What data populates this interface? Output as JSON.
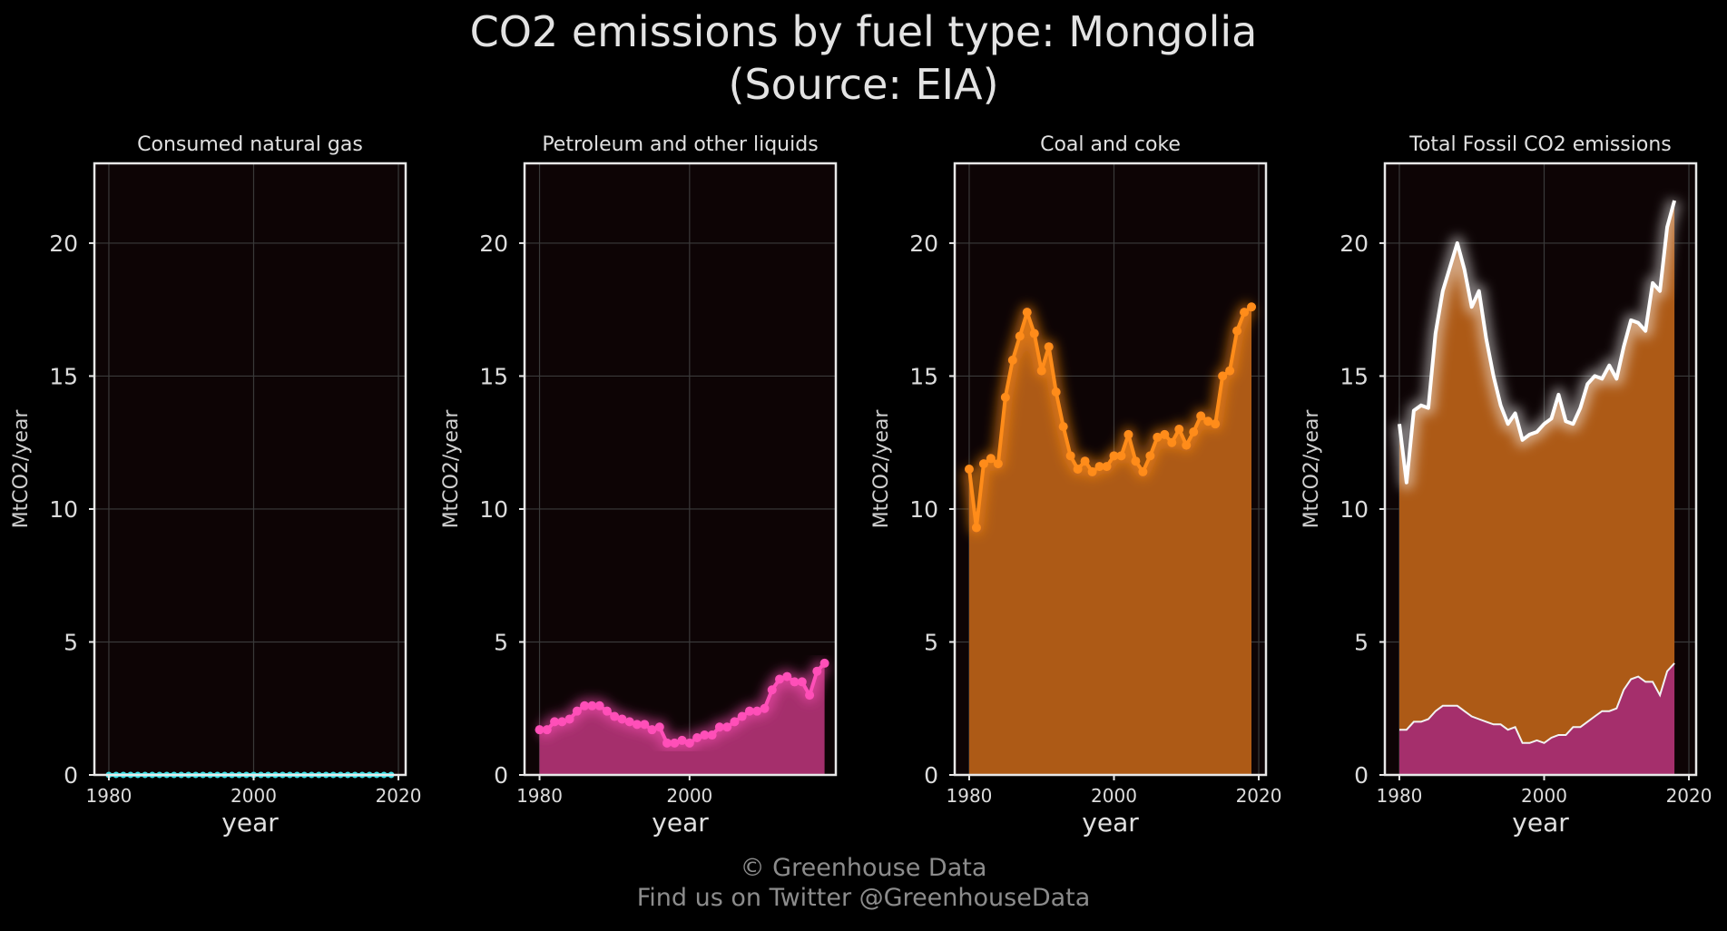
{
  "title_line1": "CO2 emissions by fuel type: Mongolia",
  "title_line2": "(Source: EIA)",
  "footer_line1": "© Greenhouse Data",
  "footer_line2": "Find us on Twitter @GreenhouseData",
  "colors": {
    "background": "#000000",
    "plot_bg": "#0d0405",
    "grid": "#3a3a3a",
    "frame": "#e8e8e8",
    "gas": "#39dfe6",
    "petroleum": "#ff4fb8",
    "petroleum_fill": "#a52f6c",
    "coal": "#ff8c1a",
    "coal_fill": "#ad5a16",
    "total": "#ffffff"
  },
  "chart_data": [
    {
      "type": "line",
      "title": "Consumed natural gas",
      "xlabel": "year",
      "ylabel": "MtCO2/year",
      "ylim": [
        0,
        23
      ],
      "xlim": [
        1978,
        2021
      ],
      "xticks": [
        "1980",
        "2000",
        "2020"
      ],
      "yticks": [
        "0",
        "5",
        "10",
        "15",
        "20"
      ],
      "grid": true,
      "series": [
        {
          "color": "#39dfe6",
          "x": [
            1980,
            1981,
            1982,
            1983,
            1984,
            1985,
            1986,
            1987,
            1988,
            1989,
            1990,
            1991,
            1992,
            1993,
            1994,
            1995,
            1996,
            1997,
            1998,
            1999,
            2000,
            2001,
            2002,
            2003,
            2004,
            2005,
            2006,
            2007,
            2008,
            2009,
            2010,
            2011,
            2012,
            2013,
            2014,
            2015,
            2016,
            2017,
            2018,
            2019
          ],
          "y": [
            0,
            0,
            0,
            0,
            0,
            0,
            0,
            0,
            0,
            0,
            0,
            0,
            0,
            0,
            0,
            0,
            0,
            0,
            0,
            0,
            0,
            0,
            0,
            0,
            0,
            0,
            0,
            0,
            0,
            0,
            0,
            0,
            0,
            0,
            0,
            0,
            0,
            0,
            0,
            0
          ]
        }
      ]
    },
    {
      "type": "area",
      "title": "Petroleum and other liquids",
      "xlabel": "year",
      "ylabel": "MtCO2/year",
      "ylim": [
        0,
        23
      ],
      "xlim": [
        1978,
        2019.5
      ],
      "xticks": [
        "1980",
        "2000"
      ],
      "yticks": [
        "0",
        "5",
        "10",
        "15",
        "20"
      ],
      "grid": true,
      "series": [
        {
          "color": "#ff4fb8",
          "x": [
            1980,
            1981,
            1982,
            1983,
            1984,
            1985,
            1986,
            1987,
            1988,
            1989,
            1990,
            1991,
            1992,
            1993,
            1994,
            1995,
            1996,
            1997,
            1998,
            1999,
            2000,
            2001,
            2002,
            2003,
            2004,
            2005,
            2006,
            2007,
            2008,
            2009,
            2010,
            2011,
            2012,
            2013,
            2014,
            2015,
            2016,
            2017,
            2018
          ],
          "y": [
            1.7,
            1.7,
            2.0,
            2.0,
            2.1,
            2.4,
            2.6,
            2.6,
            2.6,
            2.4,
            2.2,
            2.1,
            2.0,
            1.9,
            1.9,
            1.7,
            1.8,
            1.2,
            1.2,
            1.3,
            1.2,
            1.4,
            1.5,
            1.5,
            1.8,
            1.8,
            2.0,
            2.2,
            2.4,
            2.4,
            2.5,
            3.2,
            3.6,
            3.7,
            3.5,
            3.5,
            3.0,
            3.9,
            4.2
          ]
        }
      ]
    },
    {
      "type": "area",
      "title": "Coal and coke",
      "xlabel": "year",
      "ylabel": "MtCO2/year",
      "ylim": [
        0,
        23
      ],
      "xlim": [
        1978,
        2021
      ],
      "xticks": [
        "1980",
        "2000",
        "2020"
      ],
      "yticks": [
        "0",
        "5",
        "10",
        "15",
        "20"
      ],
      "grid": true,
      "series": [
        {
          "color": "#ff8c1a",
          "x": [
            1980,
            1981,
            1982,
            1983,
            1984,
            1985,
            1986,
            1987,
            1988,
            1989,
            1990,
            1991,
            1992,
            1993,
            1994,
            1995,
            1996,
            1997,
            1998,
            1999,
            2000,
            2001,
            2002,
            2003,
            2004,
            2005,
            2006,
            2007,
            2008,
            2009,
            2010,
            2011,
            2012,
            2013,
            2014,
            2015,
            2016,
            2017,
            2018,
            2019
          ],
          "y": [
            11.5,
            9.3,
            11.7,
            11.9,
            11.7,
            14.2,
            15.6,
            16.5,
            17.4,
            16.6,
            15.2,
            16.1,
            14.4,
            13.1,
            12.0,
            11.5,
            11.8,
            11.4,
            11.6,
            11.6,
            12.0,
            12.0,
            12.8,
            11.8,
            11.4,
            12.0,
            12.7,
            12.8,
            12.5,
            13.0,
            12.4,
            12.9,
            13.5,
            13.3,
            13.2,
            15.0,
            15.2,
            16.7,
            17.4,
            17.6
          ]
        }
      ]
    },
    {
      "type": "area",
      "title": "Total Fossil CO2 emissions",
      "xlabel": "year",
      "ylabel": "MtCO2/year",
      "ylim": [
        0,
        23
      ],
      "xlim": [
        1978,
        2021
      ],
      "xticks": [
        "1980",
        "2000",
        "2020"
      ],
      "yticks": [
        "0",
        "5",
        "10",
        "15",
        "20"
      ],
      "grid": true,
      "stack": {
        "x": [
          1980,
          1981,
          1982,
          1983,
          1984,
          1985,
          1986,
          1987,
          1988,
          1989,
          1990,
          1991,
          1992,
          1993,
          1994,
          1995,
          1996,
          1997,
          1998,
          1999,
          2000,
          2001,
          2002,
          2003,
          2004,
          2005,
          2006,
          2007,
          2008,
          2009,
          2010,
          2011,
          2012,
          2013,
          2014,
          2015,
          2016,
          2017,
          2018
        ],
        "petroleum": [
          1.7,
          1.7,
          2.0,
          2.0,
          2.1,
          2.4,
          2.6,
          2.6,
          2.6,
          2.4,
          2.2,
          2.1,
          2.0,
          1.9,
          1.9,
          1.7,
          1.8,
          1.2,
          1.2,
          1.3,
          1.2,
          1.4,
          1.5,
          1.5,
          1.8,
          1.8,
          2.0,
          2.2,
          2.4,
          2.4,
          2.5,
          3.2,
          3.6,
          3.7,
          3.5,
          3.5,
          3.0,
          3.9,
          4.2
        ],
        "total": [
          13.2,
          11.0,
          13.7,
          13.9,
          13.8,
          16.6,
          18.2,
          19.1,
          20.0,
          19.0,
          17.6,
          18.2,
          16.4,
          15.0,
          13.9,
          13.2,
          13.6,
          12.6,
          12.8,
          12.9,
          13.2,
          13.4,
          14.3,
          13.3,
          13.2,
          13.8,
          14.7,
          15.0,
          14.9,
          15.4,
          14.9,
          16.1,
          17.1,
          17.0,
          16.7,
          18.5,
          18.2,
          20.6,
          21.6
        ]
      },
      "series": [
        {
          "color": "#ffffff",
          "x": [
            1980,
            1981,
            1982,
            1983,
            1984,
            1985,
            1986,
            1987,
            1988,
            1989,
            1990,
            1991,
            1992,
            1993,
            1994,
            1995,
            1996,
            1997,
            1998,
            1999,
            2000,
            2001,
            2002,
            2003,
            2004,
            2005,
            2006,
            2007,
            2008,
            2009,
            2010,
            2011,
            2012,
            2013,
            2014,
            2015,
            2016,
            2017,
            2018
          ],
          "y": [
            13.2,
            11.0,
            13.7,
            13.9,
            13.8,
            16.6,
            18.2,
            19.1,
            20.0,
            19.0,
            17.6,
            18.2,
            16.4,
            15.0,
            13.9,
            13.2,
            13.6,
            12.6,
            12.8,
            12.9,
            13.2,
            13.4,
            14.3,
            13.3,
            13.2,
            13.8,
            14.7,
            15.0,
            14.9,
            15.4,
            14.9,
            16.1,
            17.1,
            17.0,
            16.7,
            18.5,
            18.2,
            20.6,
            21.6
          ]
        }
      ]
    }
  ]
}
